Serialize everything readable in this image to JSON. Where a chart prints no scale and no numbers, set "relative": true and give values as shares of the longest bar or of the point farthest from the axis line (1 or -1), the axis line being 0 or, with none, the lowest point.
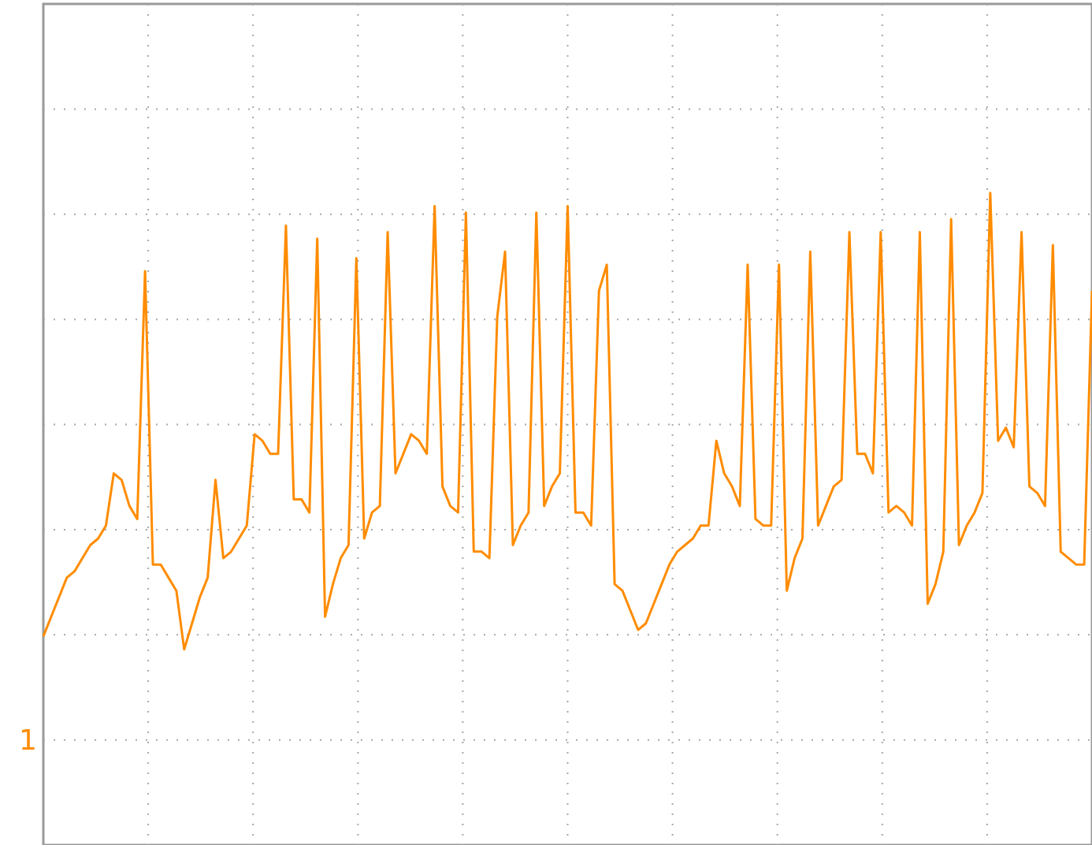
{
  "chart_data": {
    "type": "line",
    "relative": true,
    "grid": true,
    "marker": "none",
    "line_style": "solid",
    "categories": [
      null,
      null,
      null,
      null,
      null,
      null,
      null,
      null,
      null,
      null,
      null,
      null,
      null,
      null,
      null,
      null,
      null,
      null,
      null,
      null,
      null,
      null,
      null,
      null,
      null,
      null,
      null,
      null,
      null,
      null,
      null,
      null,
      null,
      null,
      null,
      null,
      null,
      null,
      null,
      null,
      null,
      null,
      null,
      null,
      null,
      null,
      null,
      null,
      null,
      null,
      null,
      null,
      null,
      null,
      null,
      null,
      null,
      null,
      null,
      null,
      null,
      null,
      null,
      null,
      null,
      null,
      null,
      null,
      null,
      null,
      null,
      null,
      null,
      null,
      null,
      null,
      null,
      null,
      null,
      null,
      null,
      null,
      null,
      null,
      null,
      null,
      null,
      null,
      null,
      null,
      null,
      null,
      null,
      null,
      null,
      null,
      null,
      null,
      null,
      null,
      null,
      null,
      null,
      null,
      null,
      null,
      null,
      null,
      null,
      null,
      null,
      null,
      null,
      null,
      null,
      null,
      null,
      null,
      null,
      null,
      null,
      null,
      null,
      null,
      null,
      null,
      null,
      null,
      null,
      null,
      null,
      null,
      null,
      null,
      null
    ],
    "series": [
      {
        "color": "#ff8c00",
        "values": [
          0.32,
          0.35,
          0.38,
          0.41,
          0.42,
          0.44,
          0.46,
          0.47,
          0.49,
          0.57,
          0.56,
          0.52,
          0.5,
          0.88,
          0.43,
          0.43,
          0.41,
          0.39,
          0.3,
          0.34,
          0.38,
          0.41,
          0.56,
          0.44,
          0.45,
          0.47,
          0.49,
          0.63,
          0.62,
          0.6,
          0.6,
          0.95,
          0.53,
          0.53,
          0.51,
          0.93,
          0.35,
          0.4,
          0.44,
          0.46,
          0.9,
          0.47,
          0.51,
          0.52,
          0.94,
          0.57,
          0.6,
          0.63,
          0.62,
          0.6,
          0.98,
          0.55,
          0.52,
          0.51,
          0.97,
          0.45,
          0.45,
          0.44,
          0.81,
          0.91,
          0.46,
          0.49,
          0.51,
          0.97,
          0.52,
          0.55,
          0.57,
          0.98,
          0.51,
          0.51,
          0.49,
          0.85,
          0.89,
          0.4,
          0.39,
          0.36,
          0.33,
          0.34,
          0.37,
          0.4,
          0.43,
          0.45,
          0.46,
          0.47,
          0.49,
          0.49,
          0.62,
          0.57,
          0.55,
          0.52,
          0.89,
          0.5,
          0.49,
          0.49,
          0.89,
          0.39,
          0.44,
          0.47,
          0.91,
          0.49,
          0.52,
          0.55,
          0.56,
          0.94,
          0.6,
          0.6,
          0.57,
          0.94,
          0.51,
          0.52,
          0.51,
          0.49,
          0.94,
          0.37,
          0.4,
          0.45,
          0.96,
          0.46,
          0.49,
          0.51,
          0.54,
          1.0,
          0.62,
          0.64,
          0.61,
          0.94,
          0.55,
          0.54,
          0.52,
          0.92,
          0.45,
          0.44,
          0.43,
          0.43,
          0.85
        ]
      }
    ],
    "annotations": [
      "1"
    ]
  }
}
